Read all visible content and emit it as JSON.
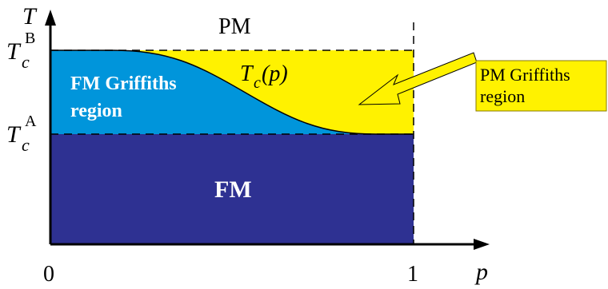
{
  "axes": {
    "y_label": "T",
    "x_label": "p",
    "x_tick_0": "0",
    "x_tick_1": "1",
    "tcB": {
      "base": "T",
      "sub": "c",
      "sup": "B"
    },
    "tcA": {
      "base": "T",
      "sub": "c",
      "sup": "A"
    }
  },
  "regions": {
    "pm": "PM",
    "fm": "FM",
    "fm_griffiths_line1": "FM Griffiths",
    "fm_griffiths_line2": "region"
  },
  "curve_label": {
    "base": "T",
    "sub": "c",
    "rest": "(p)"
  },
  "callout": {
    "line1": "PM Griffiths",
    "line2": "region"
  },
  "colors": {
    "fm": "#2e3192",
    "fm_griffiths": "#0095db",
    "pm_griffiths": "#fff200",
    "callout_fill": "#fff200",
    "callout_border": "#8a7a00",
    "axis": "#000000"
  }
}
